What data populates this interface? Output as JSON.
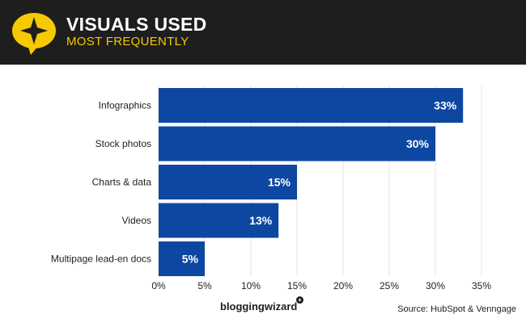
{
  "header": {
    "title": "VISUALS USED",
    "subtitle": "MOST FREQUENTLY",
    "accent_color": "#f7c900",
    "background_color": "#1e1e1e",
    "icon": "star-speech-bubble-icon"
  },
  "chart_data": {
    "type": "bar",
    "orientation": "horizontal",
    "categories": [
      "Infographics",
      "Stock photos",
      "Charts & data",
      "Videos",
      "Multipage lead-en docs"
    ],
    "values": [
      33,
      30,
      15,
      13,
      5
    ],
    "value_labels": [
      "33%",
      "30%",
      "15%",
      "13%",
      "5%"
    ],
    "xlim": [
      0,
      35
    ],
    "x_ticks": [
      "0%",
      "5%",
      "10%",
      "15%",
      "20%",
      "25%",
      "30%",
      "35%"
    ],
    "grid": "vertical",
    "bar_color": "#0d47a1"
  },
  "footer": {
    "brand": "bloggingwizard",
    "source": "Source: HubSpot & Venngage"
  }
}
